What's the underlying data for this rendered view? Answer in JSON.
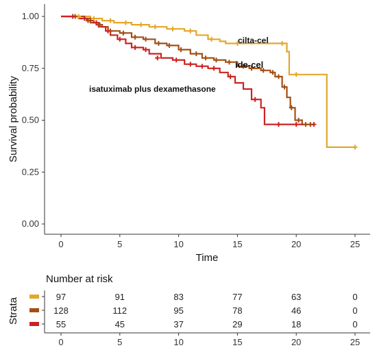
{
  "chart_data": {
    "type": "line",
    "subtype": "kaplan-meier",
    "xlabel": "Time",
    "ylabel": "Survival probability",
    "xlim": [
      -1,
      26.5
    ],
    "ylim": [
      -0.05,
      1.05
    ],
    "x_ticks": [
      0,
      5,
      10,
      15,
      20,
      25
    ],
    "x_tick_labels": [
      "0",
      "5",
      "10",
      "15",
      "20",
      "25"
    ],
    "y_ticks": [
      0,
      0.25,
      0.5,
      0.75,
      1.0
    ],
    "y_tick_labels": [
      "0.00",
      "0.25",
      "0.50",
      "0.75",
      "1.00"
    ],
    "grid": false,
    "series": [
      {
        "name": "cilta-cel",
        "color": "#e3a72a",
        "steps": [
          [
            0,
            1.0
          ],
          [
            2.5,
            0.99
          ],
          [
            3.5,
            0.98
          ],
          [
            4.5,
            0.97
          ],
          [
            6.0,
            0.96
          ],
          [
            7.5,
            0.95
          ],
          [
            9.0,
            0.94
          ],
          [
            10.5,
            0.93
          ],
          [
            11.5,
            0.91
          ],
          [
            12.5,
            0.89
          ],
          [
            13.5,
            0.88
          ],
          [
            14.0,
            0.87
          ],
          [
            19.0,
            0.87
          ],
          [
            19.2,
            0.83
          ],
          [
            19.4,
            0.72
          ],
          [
            22.3,
            0.72
          ],
          [
            22.6,
            0.37
          ],
          [
            25,
            0.37
          ]
        ],
        "censor": [
          [
            1.5,
            1.0
          ],
          [
            2.8,
            0.99
          ],
          [
            4.2,
            0.98
          ],
          [
            5.5,
            0.97
          ],
          [
            6.8,
            0.96
          ],
          [
            8.0,
            0.95
          ],
          [
            9.5,
            0.94
          ],
          [
            11.0,
            0.93
          ],
          [
            12.8,
            0.89
          ],
          [
            15.0,
            0.87
          ],
          [
            18.8,
            0.87
          ],
          [
            20.0,
            0.72
          ],
          [
            25.0,
            0.37
          ]
        ]
      },
      {
        "name": "ide-cel",
        "color": "#a34e14",
        "steps": [
          [
            0,
            1.0
          ],
          [
            2.0,
            0.99
          ],
          [
            2.5,
            0.97
          ],
          [
            3.0,
            0.96
          ],
          [
            3.5,
            0.95
          ],
          [
            4.0,
            0.93
          ],
          [
            5.0,
            0.92
          ],
          [
            6.0,
            0.9
          ],
          [
            7.0,
            0.89
          ],
          [
            8.0,
            0.87
          ],
          [
            9.0,
            0.86
          ],
          [
            10.0,
            0.84
          ],
          [
            11.0,
            0.82
          ],
          [
            12.0,
            0.8
          ],
          [
            13.0,
            0.79
          ],
          [
            14.0,
            0.78
          ],
          [
            15.0,
            0.76
          ],
          [
            16.0,
            0.75
          ],
          [
            17.0,
            0.74
          ],
          [
            17.8,
            0.73
          ],
          [
            18.2,
            0.71
          ],
          [
            18.8,
            0.66
          ],
          [
            19.2,
            0.61
          ],
          [
            19.5,
            0.56
          ],
          [
            19.9,
            0.5
          ],
          [
            20.5,
            0.48
          ],
          [
            21.2,
            0.48
          ]
        ],
        "censor": [
          [
            1.2,
            1.0
          ],
          [
            2.3,
            0.98
          ],
          [
            3.3,
            0.96
          ],
          [
            4.2,
            0.93
          ],
          [
            5.3,
            0.92
          ],
          [
            6.3,
            0.9
          ],
          [
            7.2,
            0.89
          ],
          [
            8.3,
            0.87
          ],
          [
            9.2,
            0.86
          ],
          [
            10.2,
            0.84
          ],
          [
            11.5,
            0.82
          ],
          [
            12.3,
            0.8
          ],
          [
            13.2,
            0.79
          ],
          [
            14.3,
            0.78
          ],
          [
            15.5,
            0.76
          ],
          [
            16.2,
            0.75
          ],
          [
            17.2,
            0.74
          ],
          [
            18.0,
            0.73
          ],
          [
            18.5,
            0.71
          ],
          [
            19.0,
            0.66
          ],
          [
            19.6,
            0.56
          ],
          [
            20.2,
            0.5
          ],
          [
            20.8,
            0.48
          ],
          [
            21.2,
            0.48
          ]
        ]
      },
      {
        "name": "isatuximab plus dexamethasone",
        "color": "#cc2222",
        "steps": [
          [
            0,
            1.0
          ],
          [
            1.5,
            0.99
          ],
          [
            2.2,
            0.98
          ],
          [
            2.8,
            0.97
          ],
          [
            3.2,
            0.95
          ],
          [
            3.8,
            0.93
          ],
          [
            4.2,
            0.91
          ],
          [
            4.8,
            0.89
          ],
          [
            5.5,
            0.87
          ],
          [
            6.0,
            0.85
          ],
          [
            7.0,
            0.84
          ],
          [
            7.5,
            0.82
          ],
          [
            8.5,
            0.8
          ],
          [
            9.5,
            0.79
          ],
          [
            10.5,
            0.77
          ],
          [
            11.5,
            0.76
          ],
          [
            12.5,
            0.75
          ],
          [
            13.5,
            0.73
          ],
          [
            14.2,
            0.71
          ],
          [
            14.8,
            0.68
          ],
          [
            15.5,
            0.65
          ],
          [
            16.2,
            0.6
          ],
          [
            17.0,
            0.56
          ],
          [
            17.3,
            0.48
          ],
          [
            21.5,
            0.48
          ]
        ],
        "censor": [
          [
            1.0,
            1.0
          ],
          [
            2.0,
            0.99
          ],
          [
            3.0,
            0.97
          ],
          [
            4.0,
            0.93
          ],
          [
            5.0,
            0.89
          ],
          [
            6.3,
            0.85
          ],
          [
            7.2,
            0.84
          ],
          [
            8.2,
            0.8
          ],
          [
            9.8,
            0.79
          ],
          [
            11.0,
            0.77
          ],
          [
            12.0,
            0.76
          ],
          [
            13.0,
            0.75
          ],
          [
            14.4,
            0.71
          ],
          [
            16.5,
            0.6
          ],
          [
            18.5,
            0.48
          ],
          [
            20.0,
            0.48
          ],
          [
            21.5,
            0.48
          ]
        ]
      }
    ]
  },
  "labels": {
    "cilta": "cilta-cel",
    "ide": "ide-cel",
    "isa": "isatuximab plus dexamethasone"
  },
  "risk_table": {
    "title": "Number at risk",
    "strata_label": "Strata",
    "x_ticks": [
      "0",
      "5",
      "10",
      "15",
      "20",
      "25"
    ],
    "rows": [
      {
        "color": "#e3a72a",
        "values": [
          "97",
          "91",
          "83",
          "77",
          "63",
          "0"
        ]
      },
      {
        "color": "#a34e14",
        "values": [
          "128",
          "112",
          "95",
          "78",
          "46",
          "0"
        ]
      },
      {
        "color": "#cc2222",
        "values": [
          "55",
          "45",
          "37",
          "29",
          "18",
          "0"
        ]
      }
    ]
  }
}
